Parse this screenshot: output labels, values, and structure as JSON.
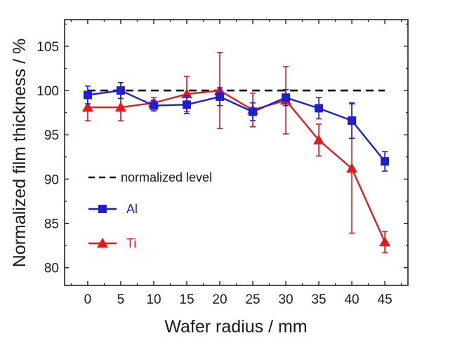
{
  "chart_data": {
    "type": "line",
    "xlabel": "Wafer radius / mm",
    "ylabel": "Normalized film thickness / %",
    "xlim": [
      -3.5,
      48.5
    ],
    "ylim": [
      78,
      108
    ],
    "x_ticks": [
      0,
      5,
      10,
      15,
      20,
      25,
      30,
      35,
      40,
      45
    ],
    "y_ticks": [
      80,
      85,
      90,
      95,
      100,
      105
    ],
    "grid": false,
    "legend_position": "bottom-left",
    "reference_line": {
      "name": "normalized level",
      "y": 100,
      "style": "dashed",
      "color": "#000000"
    },
    "series": [
      {
        "name": "Al",
        "color": "#1f1fd1",
        "marker": "square",
        "x": [
          0,
          5,
          10,
          15,
          20,
          25,
          30,
          35,
          40,
          45
        ],
        "values": [
          99.5,
          100.0,
          98.3,
          98.4,
          99.3,
          97.6,
          99.2,
          98.0,
          96.6,
          92.0
        ],
        "error": [
          1.0,
          0.9,
          0.6,
          1.0,
          1.0,
          1.0,
          0.9,
          1.2,
          2.0,
          1.1
        ]
      },
      {
        "name": "Ti",
        "color": "#e01b1b",
        "marker": "triangle",
        "x": [
          0,
          5,
          10,
          15,
          20,
          25,
          30,
          35,
          40,
          45
        ],
        "values": [
          98.1,
          98.1,
          98.6,
          99.6,
          100.0,
          97.8,
          98.9,
          94.4,
          91.2,
          82.9
        ],
        "error": [
          1.5,
          1.5,
          0.6,
          2.0,
          4.3,
          1.9,
          3.8,
          1.8,
          7.3,
          1.2
        ]
      }
    ]
  }
}
